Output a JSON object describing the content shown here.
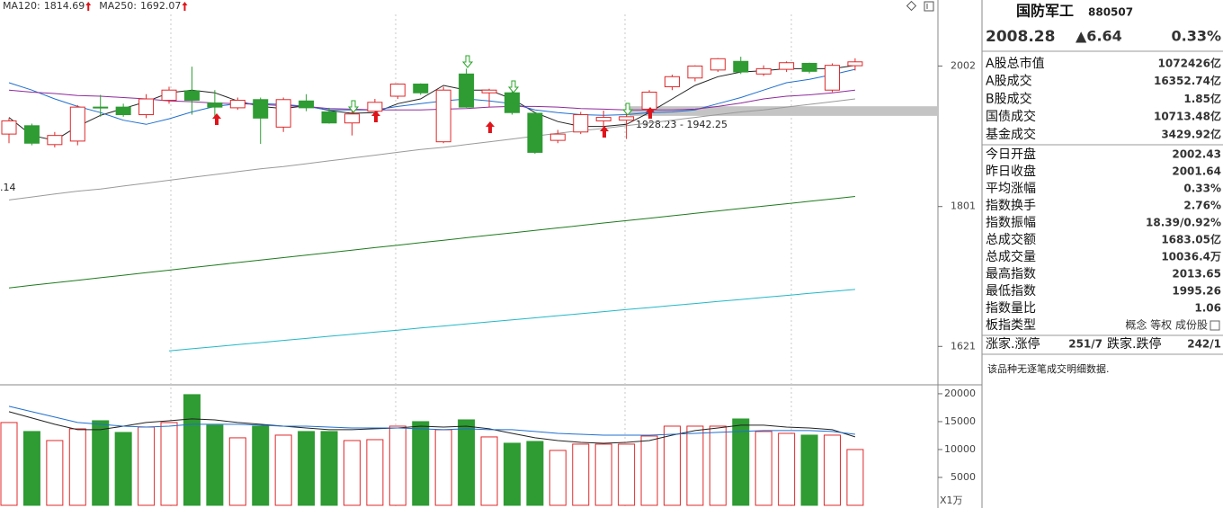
{
  "chart_data": [
    {
      "type": "candlestick",
      "open": [
        1902,
        1914,
        1887,
        1892,
        1941,
        1941,
        1930,
        1951,
        1965,
        1947,
        1940,
        1952,
        1912,
        1950,
        1934,
        1918,
        1935,
        1957,
        1975,
        1891,
        1990,
        1962,
        1962,
        1932,
        1893,
        1905,
        1921,
        1922,
        1938,
        1971,
        1984,
        1996,
        2009,
        1990,
        1997,
        2006,
        1966,
        2002.43
      ],
      "high": [
        1925,
        1917,
        1905,
        1944,
        1959,
        1946,
        1960,
        1971,
        2001,
        1966,
        1955,
        1955,
        1955,
        1960,
        1940,
        1940,
        1953,
        1976,
        1976,
        1971,
        1998,
        1968,
        1966,
        1934,
        1908,
        1934,
        1936,
        1936,
        1966,
        1989,
        2003,
        2014,
        2016,
        2003,
        2009,
        2007,
        2006,
        2013.65
      ],
      "low": [
        1889,
        1886,
        1883,
        1886,
        1927,
        1927,
        1925,
        1946,
        1930,
        1927,
        1937,
        1888,
        1905,
        1935,
        1917,
        1900,
        1930,
        1953,
        1959,
        1889,
        1940,
        1941,
        1930,
        1874,
        1889,
        1902,
        1902,
        1895,
        1933,
        1966,
        1979,
        1993,
        1990,
        1987,
        1993,
        1991,
        1963,
        1995.26
      ],
      "close": [
        1921,
        1889,
        1900,
        1941,
        1940,
        1930,
        1953,
        1966,
        1951,
        1941,
        1951,
        1925,
        1952,
        1940,
        1918,
        1931,
        1948,
        1975,
        1962,
        1966,
        1941,
        1966,
        1933,
        1876,
        1902,
        1930,
        1926,
        1927,
        1963,
        1986,
        2002,
        2013,
        1993,
        1998,
        2007,
        1994,
        2003,
        2008.28
      ],
      "up_color": "#e0292b",
      "down_color": "#2e9b33",
      "series": [
        {
          "color": "#222222",
          "values": [
            1926,
            1900,
            1893,
            1913,
            1929,
            1939,
            1949,
            1962,
            1966,
            1962,
            1950,
            1942,
            1939,
            1943,
            1936,
            1932,
            1933,
            1946,
            1953,
            1973,
            1966,
            1966,
            1953,
            1933,
            1920,
            1913,
            1913,
            1916,
            1933,
            1953,
            1973,
            1986,
            1993,
            1995,
            1998,
            1998,
            1998,
            2003
          ]
        },
        {
          "color": "#1f6fd0",
          "values": [
            1977,
            1966,
            1953,
            1942,
            1933,
            1922,
            1916,
            1924,
            1934,
            1942,
            1946,
            1946,
            1945,
            1942,
            1937,
            1937,
            1937,
            1942,
            1946,
            1950,
            1953,
            1950,
            1946,
            1937,
            1933,
            1930,
            1929,
            1930,
            1933,
            1934,
            1937,
            1946,
            1955,
            1966,
            1977,
            1982,
            1989,
            1997
          ]
        },
        {
          "color": "#8e2a9c",
          "values": [
            1966,
            1963,
            1961,
            1958,
            1957,
            1955,
            1953,
            1950,
            1949,
            1947,
            1946,
            1945,
            1943,
            1942,
            1939,
            1938,
            1937,
            1937,
            1937,
            1938,
            1939,
            1941,
            1942,
            1942,
            1941,
            1939,
            1938,
            1937,
            1937,
            1937,
            1938,
            1942,
            1947,
            1953,
            1957,
            1959,
            1962,
            1966
          ]
        },
        {
          "color": "#9a9a9a",
          "values": [
            1810,
            1814,
            1818,
            1822,
            1825,
            1829,
            1833,
            1837,
            1841,
            1845,
            1849,
            1853,
            1856,
            1860,
            1864,
            1868,
            1872,
            1876,
            1880,
            1883,
            1887,
            1891,
            1895,
            1899,
            1903,
            1907,
            1910,
            1914,
            1918,
            1922,
            1926,
            1930,
            1934,
            1937,
            1941,
            1945,
            1949,
            1953
          ]
        },
        {
          "name": "MA120:",
          "color": "#1d7a1d",
          "values": [
            1694.0,
            1697.3,
            1700.5,
            1703.8,
            1707.0,
            1710.3,
            1713.6,
            1716.8,
            1720.1,
            1723.3,
            1726.6,
            1729.9,
            1733.1,
            1736.4,
            1739.6,
            1742.9,
            1746.2,
            1749.4,
            1752.7,
            1755.9,
            1759.2,
            1762.5,
            1765.7,
            1769.0,
            1772.2,
            1775.5,
            1778.8,
            1782.0,
            1785.3,
            1788.5,
            1791.8,
            1795.1,
            1798.3,
            1801.6,
            1804.8,
            1808.1,
            1811.4,
            1814.69
          ]
        },
        {
          "name": "MA250:",
          "color": "#21b8c8",
          "values": [
            null,
            null,
            null,
            null,
            null,
            null,
            null,
            1615.5,
            1618.1,
            1620.6,
            1623.2,
            1625.7,
            1628.3,
            1630.8,
            1633.4,
            1635.9,
            1638.5,
            1641.0,
            1643.6,
            1646.1,
            1648.7,
            1651.2,
            1653.8,
            1656.3,
            1658.9,
            1661.4,
            1664.0,
            1666.6,
            1669.1,
            1671.7,
            1674.2,
            1676.8,
            1679.3,
            1681.9,
            1684.4,
            1687.0,
            1689.5,
            1692.07
          ]
        }
      ],
      "ylim": [
        1578,
        2104
      ],
      "yticks": [
        2002,
        1801,
        1621
      ],
      "log_scale": true,
      "band": {
        "range": [
          1928.23,
          1942.25
        ],
        "label": "1928.23 - 1942.25",
        "color": "#c4c4c4"
      },
      "edge_label": ".14"
    },
    {
      "type": "bar",
      "values": [
        14840,
        13230,
        11610,
        13710,
        15160,
        13060,
        14030,
        14840,
        19840,
        14360,
        12100,
        14190,
        12580,
        13230,
        13230,
        11610,
        11770,
        14190,
        15000,
        13550,
        15320,
        12260,
        11130,
        11450,
        9840,
        10970,
        10970,
        10970,
        12420,
        14190,
        14190,
        14190,
        15480,
        13230,
        12900,
        12580,
        12580,
        10000
      ],
      "series": [
        {
          "color": "#222222",
          "values": [
            16780,
            15650,
            14520,
            13550,
            13550,
            14190,
            14840,
            15160,
            15490,
            15320,
            14840,
            14520,
            14190,
            13870,
            13550,
            13550,
            13710,
            13870,
            14190,
            14030,
            14190,
            13710,
            12900,
            12100,
            11610,
            11290,
            11130,
            11290,
            11610,
            12580,
            13390,
            13870,
            14360,
            14360,
            14030,
            13870,
            13550,
            12260
          ]
        },
        {
          "color": "#1f6fd0",
          "values": [
            17740,
            16780,
            15810,
            14840,
            14520,
            14190,
            14030,
            14190,
            14520,
            14520,
            14520,
            14360,
            14190,
            14190,
            14030,
            13870,
            13870,
            13870,
            13710,
            13550,
            13710,
            13550,
            13550,
            13230,
            12900,
            12740,
            12580,
            12580,
            12580,
            12740,
            12900,
            13070,
            13230,
            13390,
            13390,
            13390,
            13230,
            12740
          ]
        }
      ],
      "ylim": [
        0,
        21600
      ],
      "yticks": [
        20000,
        15000,
        10000,
        5000
      ],
      "unit_label": "X1万"
    }
  ],
  "quote": {
    "name": "国防军工",
    "code": "880507",
    "price": "2008.28",
    "change": "▲6.64",
    "change_pct": "0.33%",
    "color": "#e8282b"
  },
  "stats": [
    {
      "label": "A股总市值",
      "value": "1072426亿",
      "color": "#000000"
    },
    {
      "label": "A股成交",
      "value": "16352.74亿",
      "color": "#000000"
    },
    {
      "label": "B股成交",
      "value": "1.85亿",
      "color": "#000000"
    },
    {
      "label": "国债成交",
      "value": "10713.48亿",
      "color": "#000000"
    },
    {
      "label": "基金成交",
      "value": "3429.92亿",
      "color": "#000000"
    },
    {
      "label": "今日开盘",
      "value": "2002.43",
      "color": "#e8282b"
    },
    {
      "label": "昨日收盘",
      "value": "2001.64",
      "color": "#000000"
    },
    {
      "label": "平均涨幅",
      "value": "0.33%",
      "color": "#e8282b"
    },
    {
      "label": "指数换手",
      "value": "2.76%",
      "color": "#000000"
    },
    {
      "label": "指数振幅",
      "value": "18.39/0.92%",
      "color": "#000000"
    },
    {
      "label": "总成交额",
      "value": "1683.05亿",
      "color": "#000000"
    },
    {
      "label": "总成交量",
      "value": "10036.4万",
      "color": "#000000"
    },
    {
      "label": "最高指数",
      "value": "2013.65",
      "color": "#e8282b"
    },
    {
      "label": "最低指数",
      "value": "1995.26",
      "color": "#1e9a2a"
    },
    {
      "label": "指数量比",
      "value": "1.06",
      "color": "#e8282b"
    },
    {
      "label": "板指类型",
      "value": "概念 等权 成份股",
      "color": "#555555"
    }
  ],
  "breadth": {
    "up_label": "涨家.涨停",
    "up": "251/7",
    "up_color": "#e8282b",
    "down_label": "跌家.跌停",
    "down": "242/1",
    "down_color": "#1e9a2a"
  },
  "note": "该品种无逐笔成交明细数据."
}
